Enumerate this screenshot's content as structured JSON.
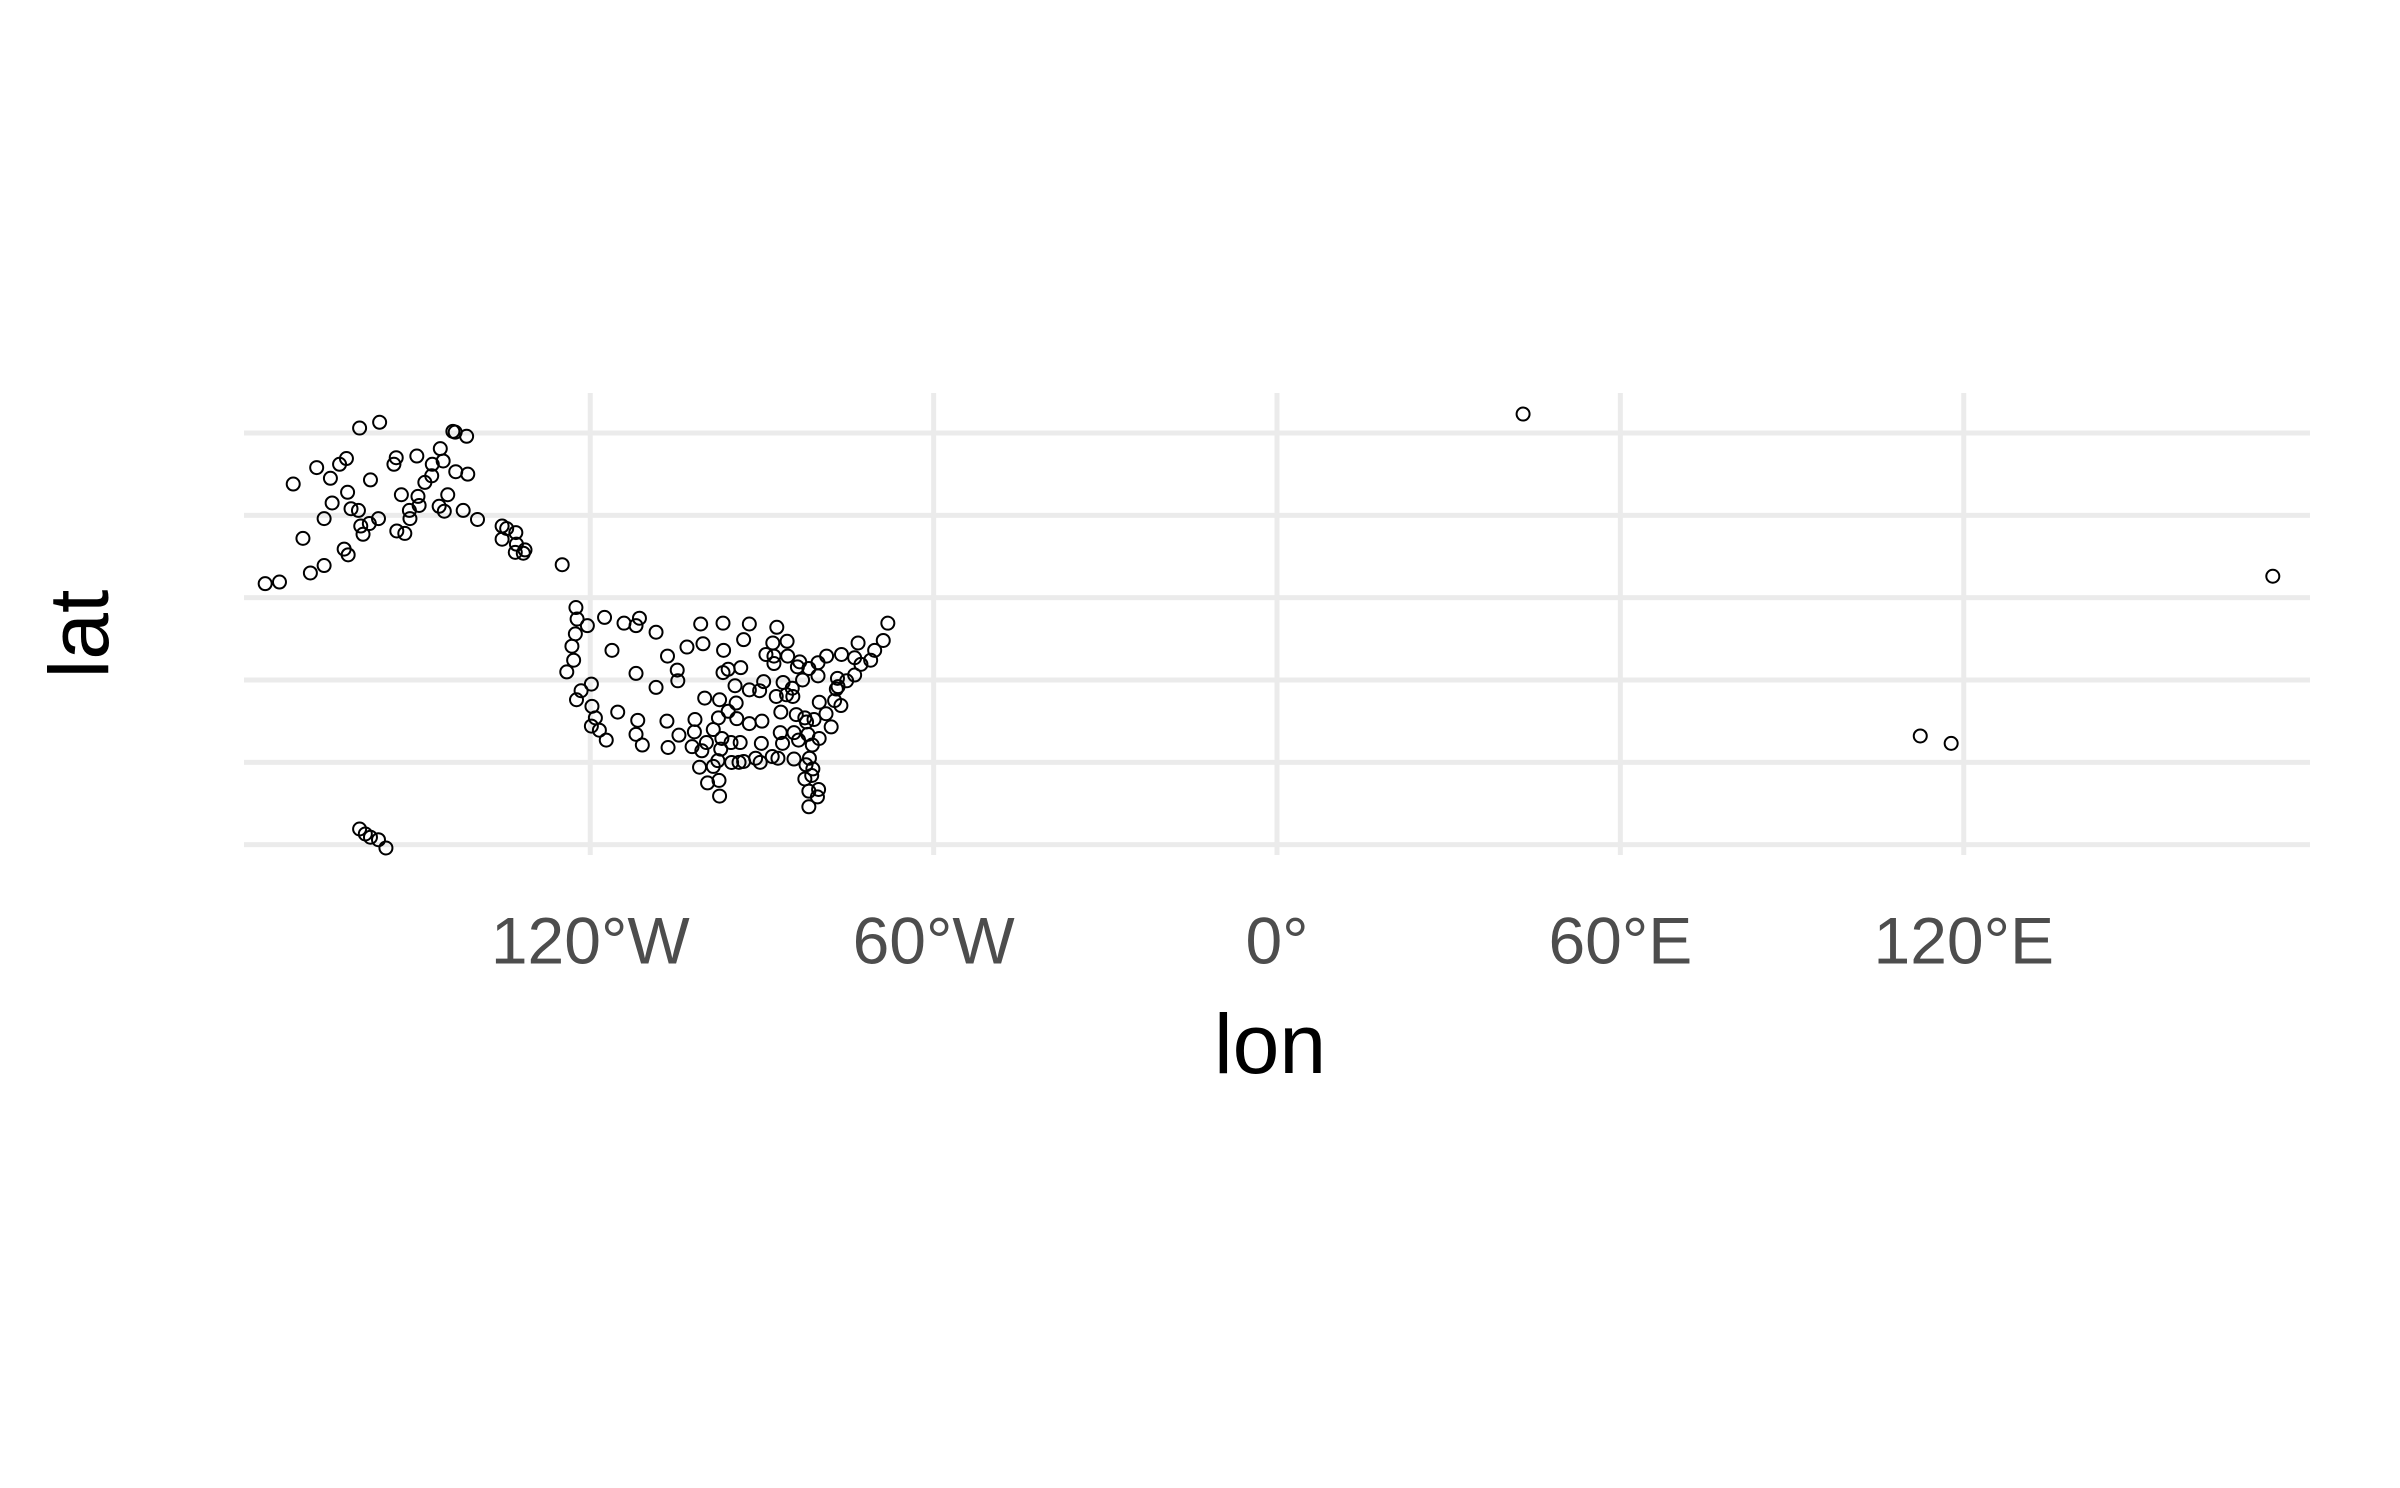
{
  "chart_data": {
    "type": "scatter",
    "x_label": "lon",
    "y_label": "lat",
    "xlim": [
      -180.5,
      180.5
    ],
    "ylim": [
      18.5,
      73.4
    ],
    "xticks": [
      {
        "value": -120,
        "label": "120°W"
      },
      {
        "value": -60,
        "label": "60°W"
      },
      {
        "value": 0,
        "label": "0°"
      },
      {
        "value": 60,
        "label": "60°E"
      },
      {
        "value": 120,
        "label": "120°E"
      }
    ],
    "yticks": [
      20,
      30,
      40,
      50,
      60,
      70
    ],
    "grid": true,
    "color": "#000000",
    "x": [
      -165.4,
      -162.6,
      -156.8,
      -147.7,
      -149.9,
      -151.5,
      -152.4,
      -160.1,
      -161.8,
      -158.6,
      -153.9,
      -145.7,
      -141.6,
      -143.6,
      -150.1,
      -145.5,
      -146.4,
      -135.4,
      -134.6,
      -131.7,
      -132.9,
      -133.1,
      -139.7,
      -162.3,
      -166.5,
      -170.2,
      -174.3,
      -176.8,
      -168.9,
      -171.9,
      -167.8,
      -160.3,
      -144.0,
      -141.4,
      -133.0,
      -124.9,
      -153.8,
      -160.5,
      -163.0,
      -165.1,
      -162.4,
      -158.4,
      -154.3,
      -150.3,
      -147.6,
      -144.9,
      -153.0,
      -157.0,
      -159.7,
      -151.6,
      -148.9,
      -146.2,
      -143.5,
      -166.5,
      -163.8,
      -142.2,
      -135.4,
      -131.4,
      -160.3,
      -158.4,
      -157.0,
      -155.7,
      -159.3,
      -122.3,
      -122.6,
      -122.4,
      -118.4,
      -117.2,
      -121.6,
      -119.8,
      -115.2,
      -112.0,
      -110.9,
      -106.6,
      -106.4,
      -104.7,
      -112.0,
      -116.2,
      -117.5,
      -108.5,
      -112.0,
      -114.1,
      -104.8,
      -103.1,
      -100.7,
      -96.8,
      -93.2,
      -92.2,
      -95.9,
      -94.7,
      -97.4,
      -97.6,
      -95.9,
      -97.0,
      -95.3,
      -98.5,
      -97.7,
      -97.5,
      -97.4,
      -101.7,
      -101.8,
      -102.2,
      -90.3,
      -90.0,
      -92.2,
      -90.1,
      -86.8,
      -84.4,
      -86.7,
      -90.4,
      -87.9,
      -87.9,
      -83.4,
      -86.3,
      -82.9,
      -81.8,
      -80.2,
      -85.7,
      -84.7,
      -80.9,
      -78.8,
      -77.3,
      -77.0,
      -76.7,
      -75.2,
      -73.8,
      -71.0,
      -70.3,
      -68.8,
      -68.0,
      -73.2,
      -73.8,
      -78.7,
      -81.7,
      -81.3,
      -82.5,
      -80.3,
      -81.8,
      -84.4,
      -81.2,
      -80.0,
      -88.2,
      -93.8,
      -93.7,
      -89.3,
      -88.1,
      -87.4,
      -96.7,
      -96.8,
      -108.5,
      -111.7,
      -122.9,
      -123.2,
      -124.1,
      -119.7,
      -119.1,
      -119.8,
      -120.5,
      -122.5,
      -111.4,
      -106.5,
      -100.3,
      -100.0,
      -104.5,
      -84.0,
      -84.6,
      -79.98,
      -76.2,
      -76.8,
      -72.7,
      -76.1,
      -80.2,
      -85.5,
      -85.6,
      -83.8,
      -87.5,
      -89.7,
      -92.2,
      -94.5,
      -94.4,
      -93.2,
      -91.1,
      -86.4,
      -83.6,
      -81.97,
      -82.2,
      -82.5,
      -77.9,
      -82.3,
      -81.8,
      -80.1,
      -81.1,
      -87.2,
      -98.5,
      -99.7,
      -99.5,
      -100.9,
      -100.5,
      -97.2,
      -95.4,
      -94.0,
      43.0,
      174.0,
      112.4,
      117.8
    ],
    "values": [
      64.5,
      66.9,
      71.3,
      64.8,
      61.2,
      59.6,
      57.8,
      58.7,
      60.8,
      59.0,
      67.0,
      66.6,
      69.6,
      70.1,
      62.3,
      60.5,
      61.1,
      57.1,
      58.4,
      55.4,
      56.5,
      55.5,
      59.5,
      55.2,
      53.9,
      57.2,
      51.9,
      51.7,
      53.0,
      63.8,
      65.8,
      70.6,
      70.2,
      65.0,
      57.9,
      54.0,
      58.1,
      60.6,
      55.9,
      61.5,
      62.8,
      64.3,
      66.2,
      67.2,
      66.2,
      62.5,
      62.5,
      59.6,
      57.7,
      60.6,
      64.0,
      68.1,
      65.3,
      59.6,
      66.2,
      60.6,
      58.7,
      55.8,
      21.9,
      20.9,
      20.6,
      19.6,
      21.3,
      47.4,
      45.6,
      37.6,
      33.9,
      32.7,
      38.7,
      39.5,
      36.1,
      33.4,
      32.1,
      35.0,
      31.8,
      39.9,
      40.8,
      43.6,
      47.6,
      45.8,
      46.6,
      46.9,
      41.2,
      44.0,
      46.8,
      46.9,
      44.9,
      46.8,
      41.3,
      39.3,
      37.6,
      35.4,
      36.2,
      32.9,
      29.98,
      29.5,
      30.2,
      27.8,
      25.9,
      35.2,
      33.7,
      31.9,
      30.0,
      35.0,
      34.7,
      32.3,
      33.6,
      33.6,
      36.1,
      38.7,
      42.0,
      42.9,
      42.2,
      39.7,
      40.0,
      41.4,
      40.5,
      38.2,
      39.0,
      35.2,
      35.9,
      37.5,
      38.9,
      39.2,
      39.9,
      40.6,
      42.4,
      43.6,
      44.8,
      46.9,
      44.5,
      42.7,
      42.9,
      30.5,
      28.4,
      27.98,
      25.8,
      24.6,
      30.4,
      32.1,
      32.9,
      30.7,
      32.4,
      41.5,
      43.1,
      44.5,
      46.4,
      43.6,
      40.9,
      39.1,
      35.1,
      42.4,
      44.1,
      40.98,
      36.8,
      35.4,
      34.4,
      46.6,
      48.8,
      47.5,
      42.9,
      44.4,
      37.8,
      33.3,
      35.8,
      38.0,
      37.3,
      36.9,
      40.2,
      41.9,
      43.1,
      42.1,
      42.9,
      44.7,
      41.6,
      38.0,
      39.8,
      38.8,
      37.2,
      35.3,
      30.1,
      30.5,
      32.3,
      32.7,
      33.4,
      34.9,
      35.4,
      34.3,
      29.7,
      26.5,
      26.7,
      29.2,
      30.5,
      33.98,
      32.4,
      27.5,
      29.4,
      31.4,
      31.6,
      32.4,
      30.0,
      72.3,
      52.6,
      33.2,
      32.3
    ]
  }
}
